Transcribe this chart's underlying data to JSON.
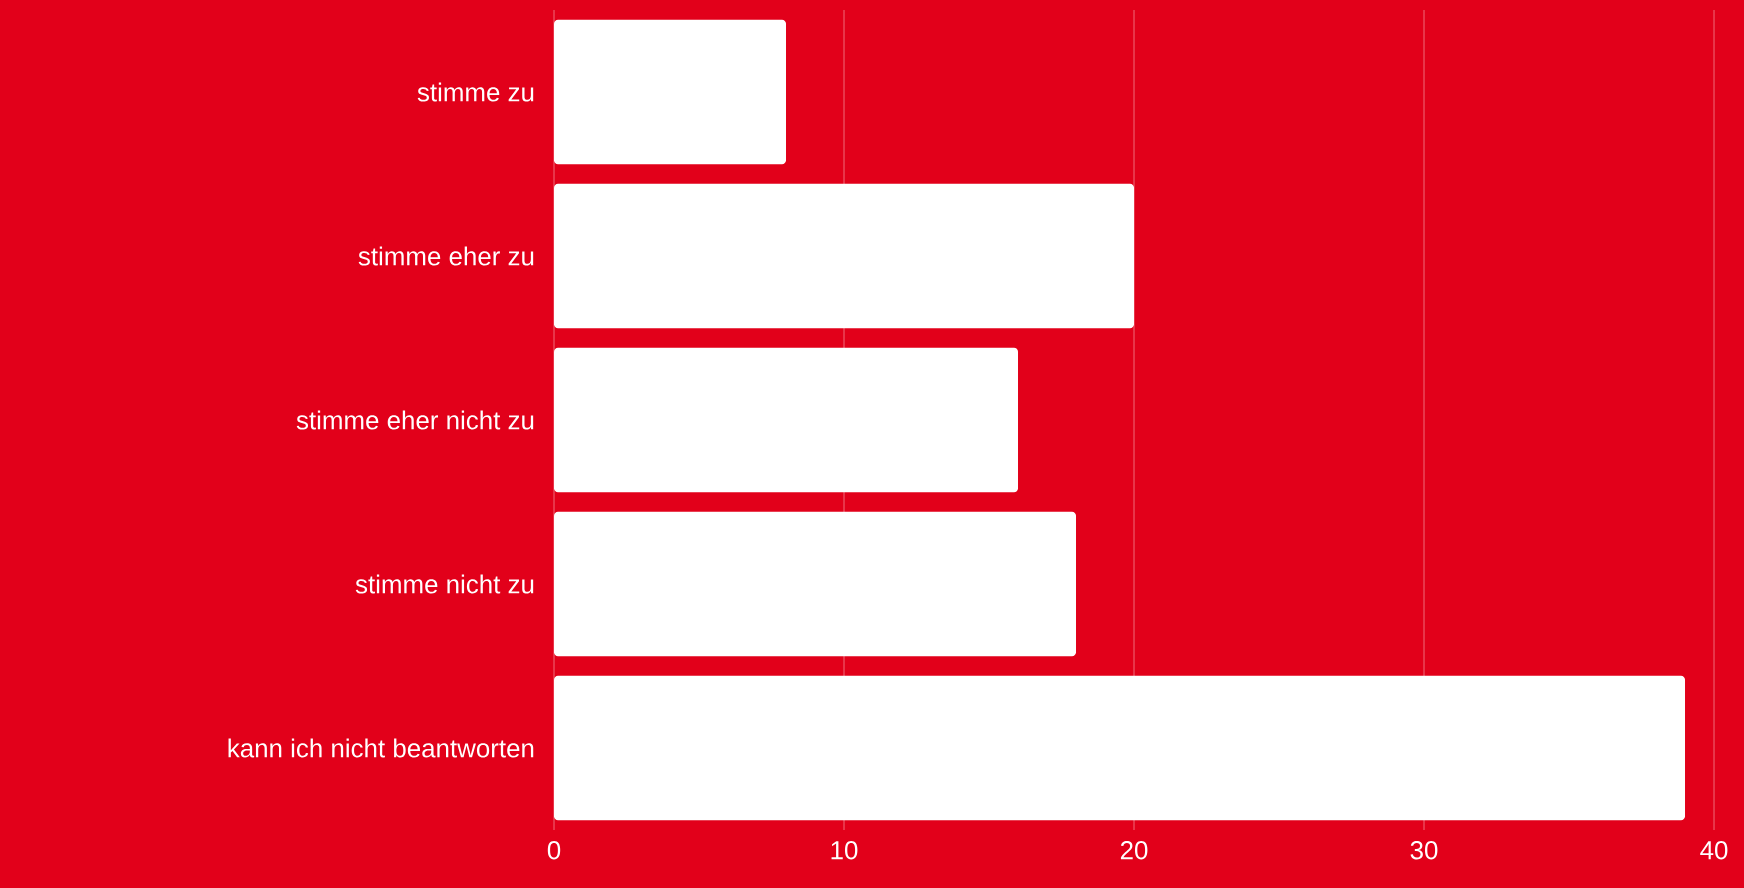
{
  "chart_data": {
    "type": "bar",
    "orientation": "horizontal",
    "categories": [
      "stimme zu",
      "stimme eher zu",
      "stimme eher nicht zu",
      "stimme nicht zu",
      "kann ich nicht beantworten"
    ],
    "values": [
      8,
      20,
      16,
      18,
      39
    ],
    "color": "#ffffff",
    "xlim": [
      0,
      40
    ],
    "xticks": [
      0,
      10,
      20,
      30,
      40
    ],
    "grid": "x"
  }
}
